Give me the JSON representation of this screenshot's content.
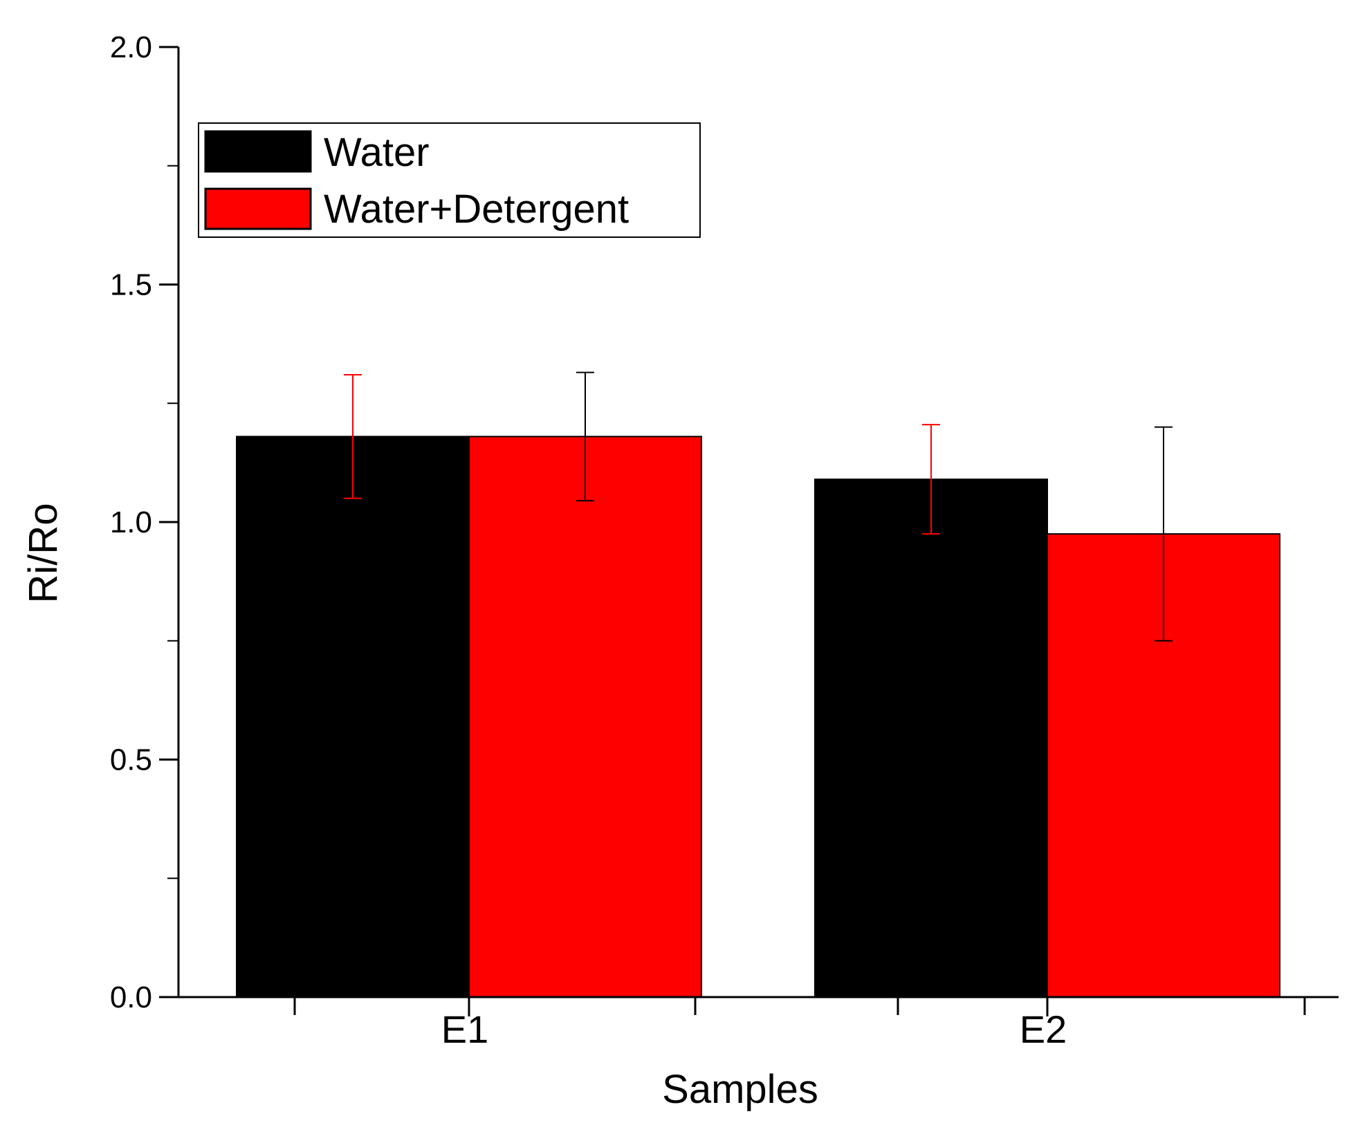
{
  "chart_data": {
    "type": "bar",
    "title": "",
    "xlabel": "Samples",
    "ylabel": "Ri/Ro",
    "ylim": [
      0,
      2.0
    ],
    "yticks": [
      "0.0",
      "0.5",
      "1.0",
      "1.5",
      "2.0"
    ],
    "y_minor_ticks": [
      0.25,
      0.75,
      1.25,
      1.75
    ],
    "categories": [
      "E1",
      "E2"
    ],
    "series": [
      {
        "name": "Water",
        "color": "#000000",
        "error_color": "#ff0000",
        "values": [
          1.18,
          1.09
        ],
        "errors": [
          0.13,
          0.115
        ]
      },
      {
        "name": "Water+Detergent",
        "color": "#ff0000",
        "error_color": "#000000",
        "values": [
          1.18,
          0.975
        ],
        "errors": [
          0.135,
          0.225
        ]
      }
    ],
    "legend": {
      "position": "top-left",
      "entries": [
        "Water",
        "Water+Detergent"
      ]
    },
    "grid": false
  }
}
